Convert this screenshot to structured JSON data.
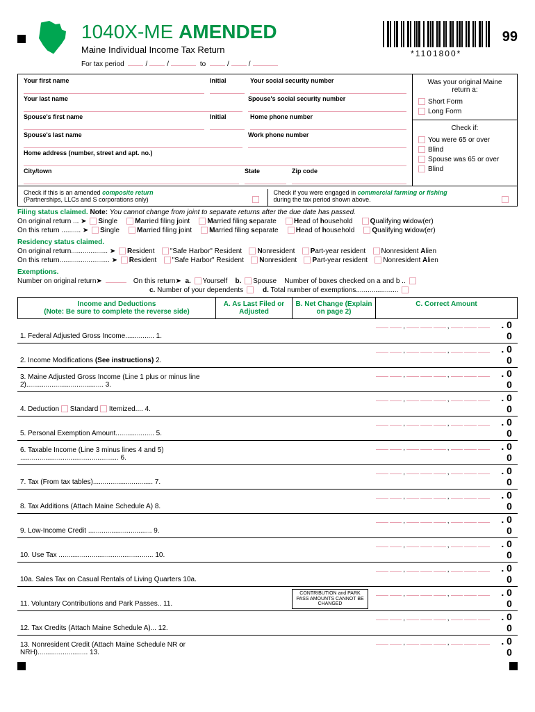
{
  "header": {
    "title_prefix": "1040X-ME ",
    "title_bold": "AMENDED",
    "subtitle": "Maine Individual Income Tax Return",
    "period_label": "For tax period",
    "to_label": "to",
    "barcode_text": "*1101800*",
    "year": "99"
  },
  "fields": {
    "first_name": "Your first name",
    "initial": "Initial",
    "ssn": "Your social security number",
    "last_name": "Your last name",
    "spouse_ssn": "Spouse's social security number",
    "spouse_first": "Spouse's first name",
    "home_phone": "Home phone number",
    "spouse_last": "Spouse's last name",
    "work_phone": "Work phone number",
    "address": "Home address (number, street and apt. no.)",
    "city": "City/town",
    "state": "State",
    "zip": "Zip code"
  },
  "rightcol": {
    "question": "Was your original Maine return a:",
    "short": "Short Form",
    "long": "Long Form",
    "checkif": "Check if:",
    "age65": "You were 65 or over",
    "blind": "Blind",
    "spouse65": "Spouse was 65 or over",
    "blind2": "Blind"
  },
  "checkrow": {
    "composite1": "Check if this is an amended ",
    "composite2": "composite return",
    "composite3": "(Partnerships, LLCs and S corporations only)",
    "farming1": "Check if you were engaged in ",
    "farming2": "commercial farming or fishing",
    "farming3": "during the tax period shown above."
  },
  "filing": {
    "title": "Filing status claimed. ",
    "note": "Note: ",
    "note_text": "You cannot change from joint to separate returns after the due date has passed.",
    "orig": "On original return ... ➤",
    "this": "On this return .......... ➤",
    "single": "Single",
    "mfj": "Married filing joint",
    "mfs": "Married filing separate",
    "hoh": "Head of household",
    "qw": "Qualifying widow(er)"
  },
  "residency": {
    "title": "Residency status claimed.",
    "orig": "On original return................... ➤",
    "this": "On this return.......................... ➤",
    "resident": "Resident",
    "safeharbor": "\"Safe Harbor\" Resident",
    "nonres": "Nonresident",
    "partyear": "Part-year resident",
    "nralien": "Nonresident Alien"
  },
  "exemptions": {
    "title": "Exemptions.",
    "orig": "Number on original return➤",
    "this": "On this return➤",
    "a": "a.",
    "yourself": "Yourself",
    "b": "b.",
    "spouse": "Spouse",
    "boxes": "Number of boxes checked on a and b ..",
    "c": "c.",
    "ctext": "Number of your dependents",
    "d": "d.",
    "dtext": "Total number of exemptions......................"
  },
  "tablehead": {
    "a": "Income and Deductions",
    "a_note": "(Note: Be sure to complete the reverse side)",
    "b": "A. As Last Filed or Adjusted",
    "c": "B. Net Change (Explain on page 2)",
    "d": "C. Correct Amount"
  },
  "lines": {
    "l1": "1.   Federal Adjusted Gross Income............... 1.",
    "l2": "2.   Income Modifications (See instructions)   2.",
    "l3": "3.   Maine Adjusted Gross Income (Line 1 plus or minus line 2)........................................   3.",
    "l4": "4.   Deduction",
    "l4_std": "Standard",
    "l4_itm": "Itemized.... 4.",
    "l5": "5.   Personal Exemption Amount....................   5.",
    "l6": "6.   Taxable Income (Line 3 minus lines 4 and 5) ...................................................   6.",
    "l7": "7.   Tax (From tax tables)...............................   7.",
    "l8": "8.   Tax Additions (Attach Maine Schedule A)  8.",
    "l9": "9.   Low-Income Credit  .................................   9.",
    "l10": "10.  Use Tax  ................................................. 10.",
    "l10a": "10a. Sales Tax on Casual Rentals of Living Quarters 10a.",
    "l11": "11.  Voluntary Contributions and Park Passes.. 11.",
    "l11_note": "CONTRIBUTION and PARK PASS AMOUNTS CANNOT BE CHANGED",
    "l12": "12.  Tax Credits (Attach Maine Schedule A)... 12.",
    "l13": "13.  Nonresident Credit (Attach Maine Schedule NR or NRH).......................... 13."
  },
  "decimals": ". 0 0"
}
